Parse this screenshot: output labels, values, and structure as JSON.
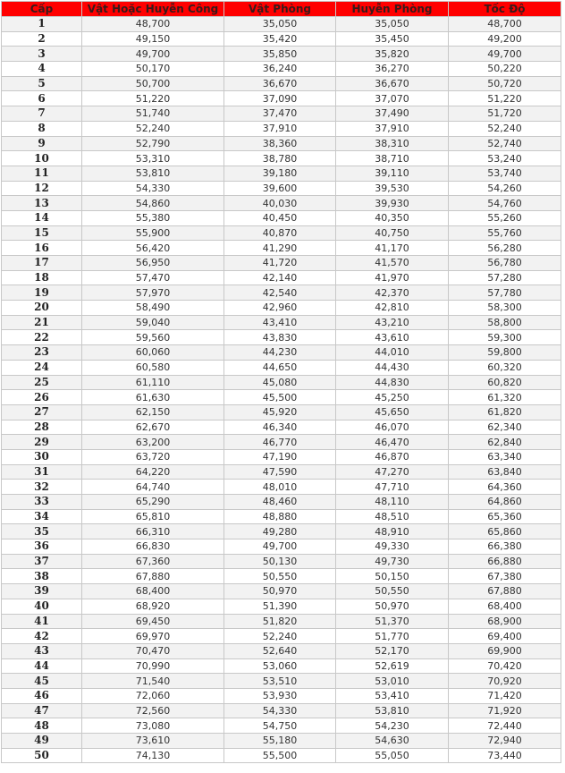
{
  "table": {
    "headers": [
      "Cấp",
      "Vật Hoặc Huyễn Công",
      "Vật Phòng",
      "Huyễn Phòng",
      "Tốc Độ"
    ],
    "header_bg": "#ff0000",
    "rows": [
      [
        "1",
        "48,700",
        "35,050",
        "35,050",
        "48,700"
      ],
      [
        "2",
        "49,150",
        "35,420",
        "35,450",
        "49,200"
      ],
      [
        "3",
        "49,700",
        "35,850",
        "35,820",
        "49,700"
      ],
      [
        "4",
        "50,170",
        "36,240",
        "36,270",
        "50,220"
      ],
      [
        "5",
        "50,700",
        "36,670",
        "36,670",
        "50,720"
      ],
      [
        "6",
        "51,220",
        "37,090",
        "37,070",
        "51,220"
      ],
      [
        "7",
        "51,740",
        "37,470",
        "37,490",
        "51,720"
      ],
      [
        "8",
        "52,240",
        "37,910",
        "37,910",
        "52,240"
      ],
      [
        "9",
        "52,790",
        "38,360",
        "38,310",
        "52,740"
      ],
      [
        "10",
        "53,310",
        "38,780",
        "38,710",
        "53,240"
      ],
      [
        "11",
        "53,810",
        "39,180",
        "39,110",
        "53,740"
      ],
      [
        "12",
        "54,330",
        "39,600",
        "39,530",
        "54,260"
      ],
      [
        "13",
        "54,860",
        "40,030",
        "39,930",
        "54,760"
      ],
      [
        "14",
        "55,380",
        "40,450",
        "40,350",
        "55,260"
      ],
      [
        "15",
        "55,900",
        "40,870",
        "40,750",
        "55,760"
      ],
      [
        "16",
        "56,420",
        "41,290",
        "41,170",
        "56,280"
      ],
      [
        "17",
        "56,950",
        "41,720",
        "41,570",
        "56,780"
      ],
      [
        "18",
        "57,470",
        "42,140",
        "41,970",
        "57,280"
      ],
      [
        "19",
        "57,970",
        "42,540",
        "42,370",
        "57,780"
      ],
      [
        "20",
        "58,490",
        "42,960",
        "42,810",
        "58,300"
      ],
      [
        "21",
        "59,040",
        "43,410",
        "43,210",
        "58,800"
      ],
      [
        "22",
        "59,560",
        "43,830",
        "43,610",
        "59,300"
      ],
      [
        "23",
        "60,060",
        "44,230",
        "44,010",
        "59,800"
      ],
      [
        "24",
        "60,580",
        "44,650",
        "44,430",
        "60,320"
      ],
      [
        "25",
        "61,110",
        "45,080",
        "44,830",
        "60,820"
      ],
      [
        "26",
        "61,630",
        "45,500",
        "45,250",
        "61,320"
      ],
      [
        "27",
        "62,150",
        "45,920",
        "45,650",
        "61,820"
      ],
      [
        "28",
        "62,670",
        "46,340",
        "46,070",
        "62,340"
      ],
      [
        "29",
        "63,200",
        "46,770",
        "46,470",
        "62,840"
      ],
      [
        "30",
        "63,720",
        "47,190",
        "46,870",
        "63,340"
      ],
      [
        "31",
        "64,220",
        "47,590",
        "47,270",
        "63,840"
      ],
      [
        "32",
        "64,740",
        "48,010",
        "47,710",
        "64,360"
      ],
      [
        "33",
        "65,290",
        "48,460",
        "48,110",
        "64,860"
      ],
      [
        "34",
        "65,810",
        "48,880",
        "48,510",
        "65,360"
      ],
      [
        "35",
        "66,310",
        "49,280",
        "48,910",
        "65,860"
      ],
      [
        "36",
        "66,830",
        "49,700",
        "49,330",
        "66,380"
      ],
      [
        "37",
        "67,360",
        "50,130",
        "49,730",
        "66,880"
      ],
      [
        "38",
        "67,880",
        "50,550",
        "50,150",
        "67,380"
      ],
      [
        "39",
        "68,400",
        "50,970",
        "50,550",
        "67,880"
      ],
      [
        "40",
        "68,920",
        "51,390",
        "50,970",
        "68,400"
      ],
      [
        "41",
        "69,450",
        "51,820",
        "51,370",
        "68,900"
      ],
      [
        "42",
        "69,970",
        "52,240",
        "51,770",
        "69,400"
      ],
      [
        "43",
        "70,470",
        "52,640",
        "52,170",
        "69,900"
      ],
      [
        "44",
        "70,990",
        "53,060",
        "52,619",
        "70,420"
      ],
      [
        "45",
        "71,540",
        "53,510",
        "53,010",
        "70,920"
      ],
      [
        "46",
        "72,060",
        "53,930",
        "53,410",
        "71,420"
      ],
      [
        "47",
        "72,560",
        "54,330",
        "53,810",
        "71,920"
      ],
      [
        "48",
        "73,080",
        "54,750",
        "54,230",
        "72,440"
      ],
      [
        "49",
        "73,610",
        "55,180",
        "54,630",
        "72,940"
      ],
      [
        "50",
        "74,130",
        "55,500",
        "55,050",
        "73,440"
      ]
    ]
  }
}
